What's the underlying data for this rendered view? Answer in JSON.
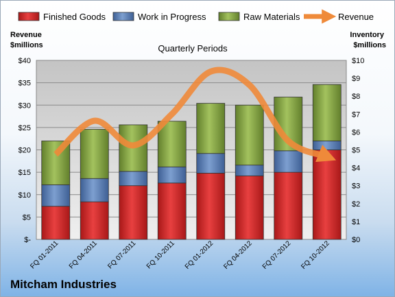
{
  "company": "Mitcham Industries",
  "chart_data": {
    "type": "bar",
    "stacked": true,
    "title": "Quarterly Periods",
    "ylabel_left": [
      "Revenue",
      "$millions"
    ],
    "ylabel_right": [
      "Inventory",
      "$millions"
    ],
    "categories": [
      "FQ 01-2011",
      "FQ 04-2011",
      "FQ 07-2011",
      "FQ 10-2011",
      "FQ 01-2012",
      "FQ 04-2012",
      "FQ 07-2012",
      "FQ 10-2012"
    ],
    "left_axis": {
      "min": 0,
      "max": 40,
      "step": 5,
      "tick_labels": [
        "$-",
        "$5",
        "$10",
        "$15",
        "$20",
        "$25",
        "$30",
        "$35",
        "$40"
      ]
    },
    "right_axis": {
      "min": 0,
      "max": 10,
      "step": 1,
      "tick_labels": [
        "$0",
        "$1",
        "$2",
        "$3",
        "$4",
        "$5",
        "$6",
        "$7",
        "$8",
        "$9",
        "$10"
      ]
    },
    "grid": true,
    "legend_position": "top",
    "series": [
      {
        "name": "Finished Goods",
        "type": "bar",
        "axis": "right",
        "color": "#d42a2a",
        "values": [
          1.85,
          2.1,
          3.0,
          3.15,
          3.7,
          3.55,
          3.75,
          5.0
        ]
      },
      {
        "name": "Work in Progress",
        "type": "bar",
        "axis": "right",
        "color": "#5b7fb8",
        "values": [
          1.2,
          1.3,
          0.8,
          0.9,
          1.1,
          0.6,
          1.2,
          0.5
        ]
      },
      {
        "name": "Raw Materials",
        "type": "bar",
        "axis": "right",
        "color": "#86a845",
        "values": [
          2.45,
          2.75,
          2.6,
          2.55,
          2.8,
          3.35,
          3.0,
          3.15
        ]
      },
      {
        "name": "Revenue",
        "type": "line",
        "axis": "left",
        "color": "#ef8a3a",
        "values": [
          19,
          26.5,
          21,
          28,
          37.5,
          34.5,
          22,
          18.5
        ]
      }
    ]
  }
}
